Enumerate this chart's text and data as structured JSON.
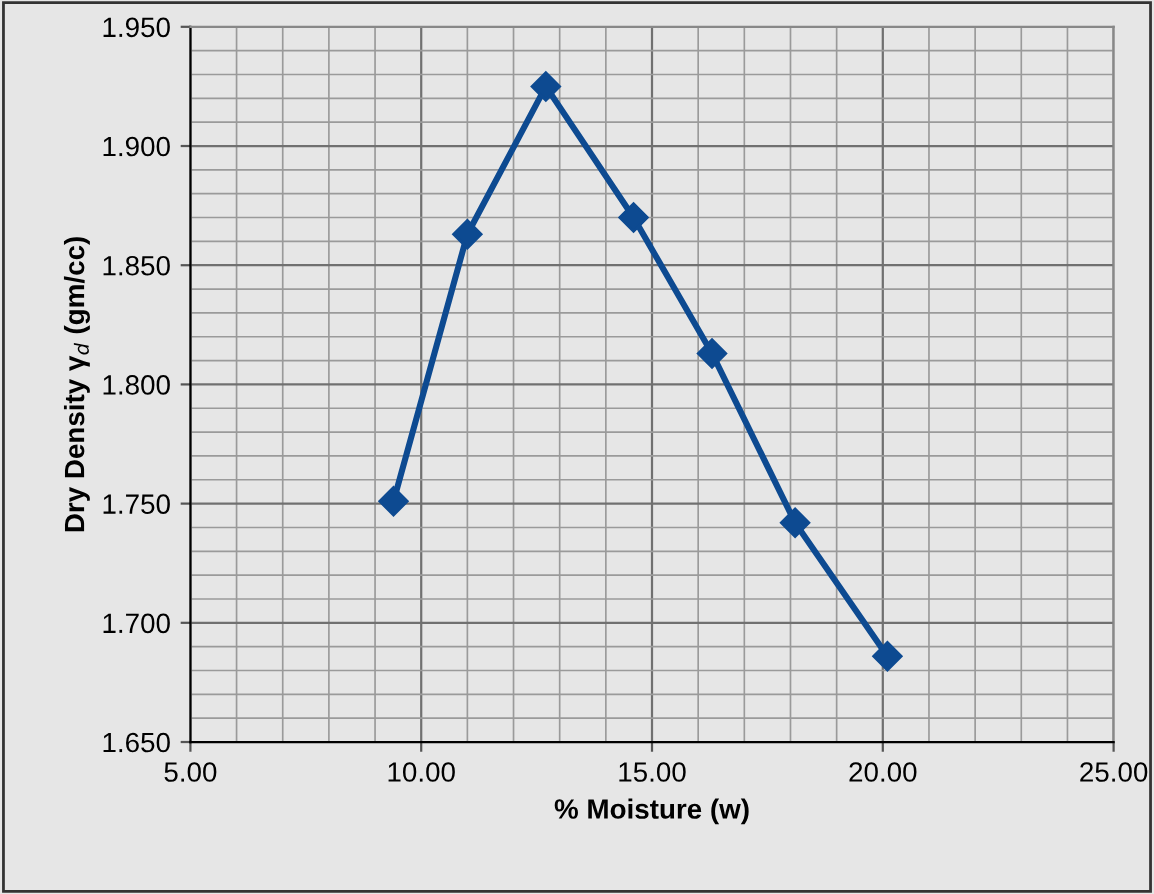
{
  "chart_data": {
    "type": "line",
    "xlabel": "% Moisture (w)",
    "ylabel": "Dry Density γ$_{d}$ (gm/cc)",
    "series": [
      {
        "color": "#0d4a91",
        "x": [
          9.4,
          11.0,
          12.7,
          14.6,
          16.3,
          18.1,
          20.1
        ],
        "values": [
          1.751,
          1.863,
          1.925,
          1.87,
          1.813,
          1.742,
          1.686
        ]
      }
    ],
    "xlim": [
      5,
      25
    ],
    "xticks": [
      {
        "value": 5,
        "label": "5.00"
      },
      {
        "value": 10,
        "label": "10.00"
      },
      {
        "value": 15,
        "label": "15.00"
      },
      {
        "value": 20,
        "label": "20.00"
      },
      {
        "value": 25,
        "label": "25.00"
      }
    ],
    "ylim": [
      1.65,
      1.95
    ],
    "yticks": [
      {
        "value": 1.65,
        "label": "1.650"
      },
      {
        "value": 1.7,
        "label": "1.700"
      },
      {
        "value": 1.75,
        "label": "1.750"
      },
      {
        "value": 1.8,
        "label": "1.800"
      },
      {
        "value": 1.85,
        "label": "1.850"
      },
      {
        "value": 1.9,
        "label": "1.900"
      },
      {
        "value": 1.95,
        "label": "1.950"
      }
    ],
    "grid": true,
    "marker": "diamond",
    "line_style": "solid",
    "legend": false
  }
}
